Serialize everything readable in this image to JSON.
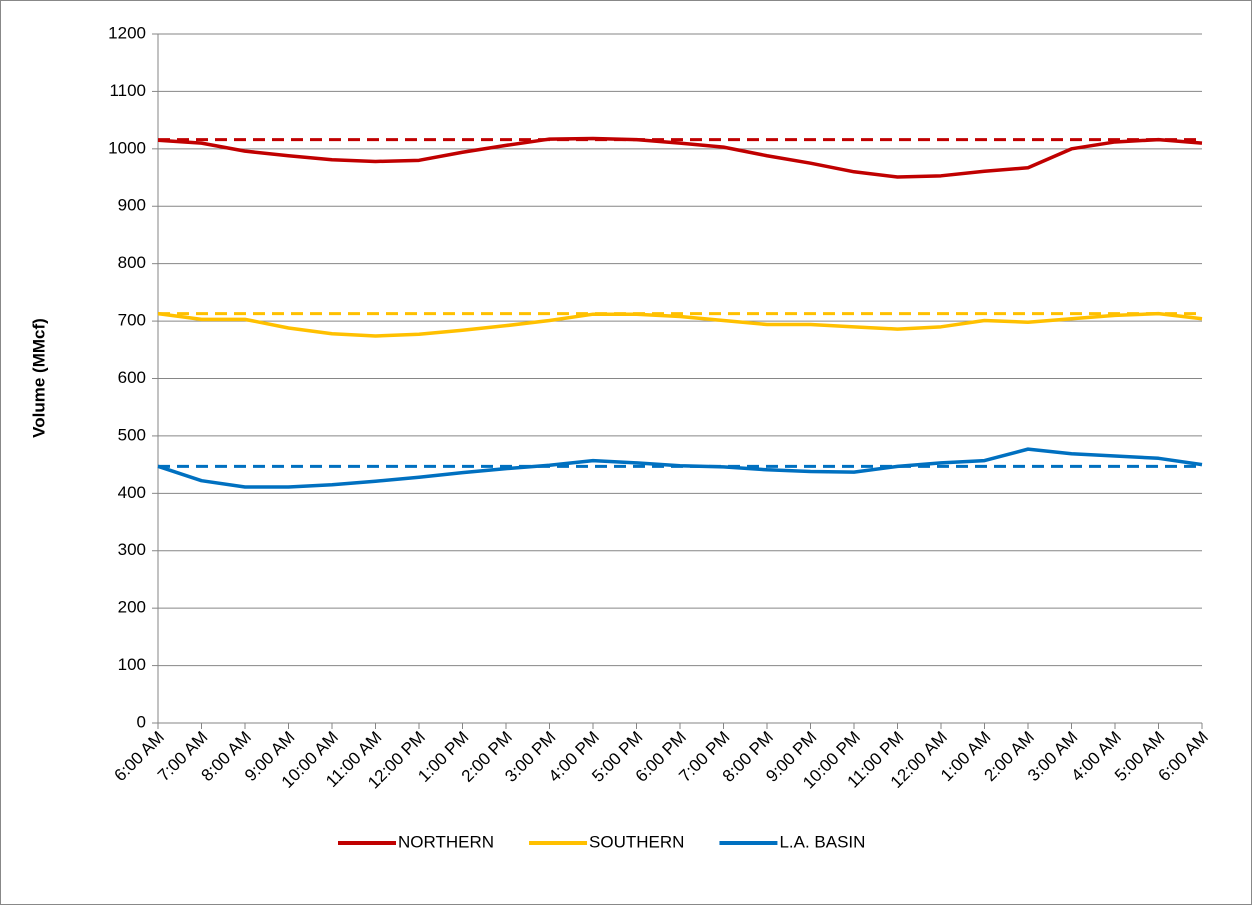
{
  "chart_data": {
    "type": "line",
    "y_label": "Volume (MMcf)",
    "categories": [
      "6:00 AM",
      "7:00 AM",
      "8:00 AM",
      "9:00 AM",
      "10:00 AM",
      "11:00 AM",
      "12:00 PM",
      "1:00 PM",
      "2:00 PM",
      "3:00 PM",
      "4:00 PM",
      "5:00 PM",
      "6:00 PM",
      "7:00 PM",
      "8:00 PM",
      "9:00 PM",
      "10:00 PM",
      "11:00 PM",
      "12:00 AM",
      "1:00 AM",
      "2:00 AM",
      "3:00 AM",
      "4:00 AM",
      "5:00 AM",
      "6:00 AM"
    ],
    "series": [
      {
        "name": "NORTHERN",
        "color": "#c00000",
        "values": [
          1015,
          1010,
          996,
          988,
          981,
          978,
          980,
          994,
          1006,
          1017,
          1018,
          1016,
          1010,
          1003,
          988,
          975,
          960,
          951,
          953,
          961,
          967,
          1000,
          1012,
          1016,
          1010
        ]
      },
      {
        "name": "SOUTHERN",
        "color": "#ffc000",
        "values": [
          713,
          703,
          703,
          688,
          678,
          674,
          677,
          684,
          692,
          701,
          712,
          712,
          708,
          701,
          694,
          694,
          690,
          686,
          690,
          701,
          698,
          704,
          710,
          713,
          704
        ]
      },
      {
        "name": "L.A. BASIN",
        "color": "#0070c0",
        "values": [
          447,
          422,
          411,
          411,
          415,
          421,
          428,
          436,
          443,
          449,
          457,
          453,
          448,
          446,
          441,
          438,
          437,
          447,
          453,
          457,
          477,
          469,
          465,
          461,
          450
        ]
      },
      {
        "color": "#c00000",
        "dashed": true,
        "values": [
          1016,
          1016,
          1016,
          1016,
          1016,
          1016,
          1016,
          1016,
          1016,
          1016,
          1016,
          1016,
          1016,
          1016,
          1016,
          1016,
          1016,
          1016,
          1016,
          1016,
          1016,
          1016,
          1016,
          1016,
          1016
        ]
      },
      {
        "color": "#ffc000",
        "dashed": true,
        "values": [
          713,
          713,
          713,
          713,
          713,
          713,
          713,
          713,
          713,
          713,
          713,
          713,
          713,
          713,
          713,
          713,
          713,
          713,
          713,
          713,
          713,
          713,
          713,
          713,
          713
        ]
      },
      {
        "color": "#0070c0",
        "dashed": true,
        "values": [
          447,
          447,
          447,
          447,
          447,
          447,
          447,
          447,
          447,
          447,
          447,
          447,
          447,
          447,
          447,
          447,
          447,
          447,
          447,
          447,
          447,
          447,
          447,
          447,
          447
        ]
      }
    ],
    "ylim": [
      0,
      1200
    ],
    "yticks": [
      0,
      100,
      200,
      300,
      400,
      500,
      600,
      700,
      800,
      900,
      1000,
      1100,
      1200
    ],
    "grid": true,
    "legend": "bottom"
  }
}
